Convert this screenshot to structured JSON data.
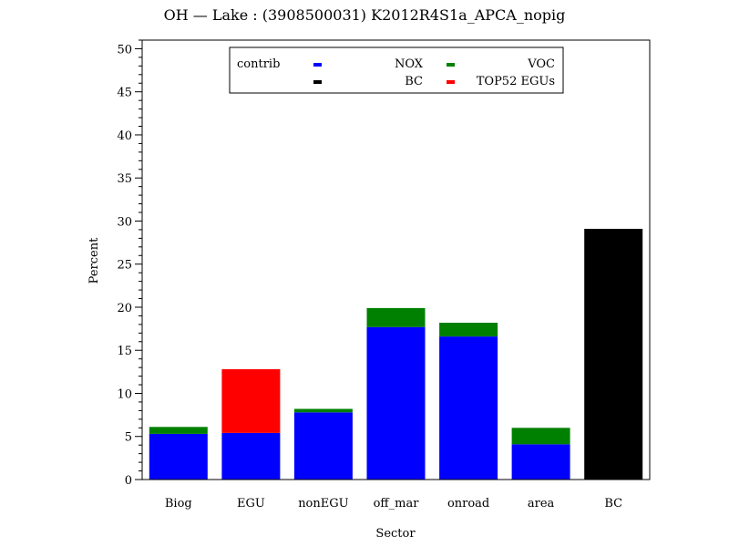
{
  "chart_data": {
    "type": "bar",
    "stacked": true,
    "title": "OH  —  Lake : (3908500031) K2012R4S1a_APCA_nopig",
    "xlabel": "Sector",
    "ylabel": "Percent",
    "ylim": [
      0,
      51
    ],
    "yticks": [
      0,
      5,
      10,
      15,
      20,
      25,
      30,
      35,
      40,
      45,
      50
    ],
    "minor_tick_step": 1,
    "grid": false,
    "legend_placement": "top-center",
    "legend_title": "contrib",
    "categories": [
      "Biog",
      "EGU",
      "nonEGU",
      "off_mar",
      "onroad",
      "area",
      "BC"
    ],
    "series": [
      {
        "name": "NOX",
        "color": "#0000ff",
        "values": [
          5.3,
          5.4,
          7.8,
          17.7,
          16.6,
          4.1,
          0
        ]
      },
      {
        "name": "VOC",
        "color": "#008000",
        "values": [
          0.8,
          0,
          0.4,
          2.2,
          1.6,
          1.9,
          0
        ]
      },
      {
        "name": "BC",
        "color": "#000000",
        "values": [
          0,
          0,
          0,
          0,
          0,
          0,
          29.1
        ]
      },
      {
        "name": "TOP52 EGUs",
        "color": "#ff0000",
        "values": [
          0,
          7.4,
          0,
          0,
          0,
          0,
          0
        ]
      }
    ],
    "legend_order": [
      0,
      1,
      2,
      3
    ]
  }
}
